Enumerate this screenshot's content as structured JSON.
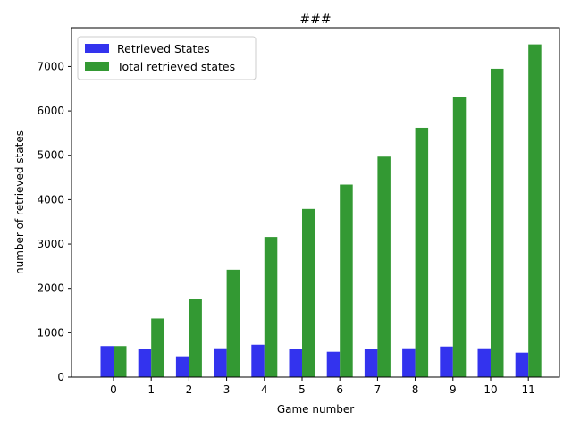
{
  "chart_data": {
    "type": "bar",
    "title": "###",
    "xlabel": "Game number",
    "ylabel": "number of retrieved states",
    "categories": [
      "0",
      "1",
      "2",
      "3",
      "4",
      "5",
      "6",
      "7",
      "8",
      "9",
      "10",
      "11"
    ],
    "series": [
      {
        "name": "Retrieved States",
        "color": "#3333ee",
        "values": [
          700,
          630,
          470,
          650,
          730,
          630,
          570,
          630,
          650,
          690,
          650,
          550
        ]
      },
      {
        "name": "Total retrieved states",
        "color": "#339933",
        "values": [
          700,
          1320,
          1770,
          2420,
          3160,
          3790,
          4340,
          4970,
          5620,
          6320,
          6950,
          7500
        ]
      }
    ],
    "ylim": [
      0,
      7875
    ],
    "yticks": [
      0,
      1000,
      2000,
      3000,
      4000,
      5000,
      6000,
      7000
    ],
    "grid": false,
    "legend_position": "top-left"
  }
}
